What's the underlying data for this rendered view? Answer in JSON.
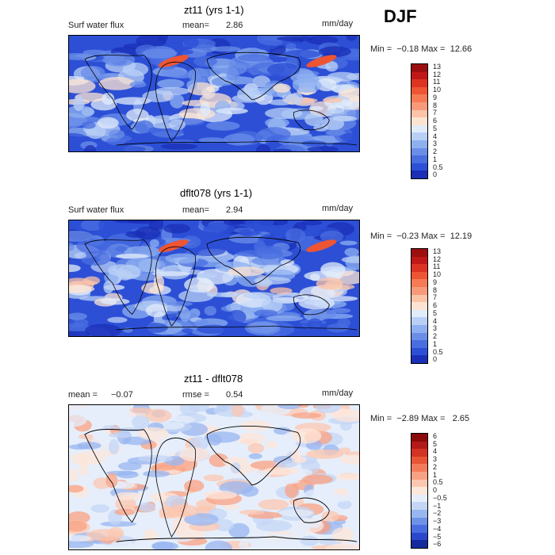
{
  "season": "DJF",
  "units": "mm/day",
  "panels": [
    {
      "title": "zt11 (yrs 1-1)",
      "field": "Surf water flux",
      "left_stat": "",
      "left_value": "",
      "mean_label": "mean=",
      "mean": "2.86",
      "minmax": "Min =  −0.18 Max =  12.66",
      "levels": [
        "13",
        "12",
        "11",
        "10",
        "9",
        "8",
        "7",
        "6",
        "5",
        "4",
        "3",
        "2",
        "1",
        "0.5",
        "0"
      ],
      "colors": [
        "#9b0f0f",
        "#c01818",
        "#dd3322",
        "#ee5533",
        "#f57a55",
        "#f89a7a",
        "#fbc3a8",
        "#fde4d2",
        "#e1ecfb",
        "#b9d0f6",
        "#8fb0f0",
        "#6a8ee8",
        "#4a6ee0",
        "#2c4fd6",
        "#1a2fb5"
      ]
    },
    {
      "title": "dflt078 (yrs 1-1)",
      "field": "Surf water flux",
      "left_stat": "",
      "left_value": "",
      "mean_label": "mean=",
      "mean": "2.94",
      "minmax": "Min =  −0.23 Max =  12.19",
      "levels": [
        "13",
        "12",
        "11",
        "10",
        "9",
        "8",
        "7",
        "6",
        "5",
        "4",
        "3",
        "2",
        "1",
        "0.5",
        "0"
      ],
      "colors": [
        "#9b0f0f",
        "#c01818",
        "#dd3322",
        "#ee5533",
        "#f57a55",
        "#f89a7a",
        "#fbc3a8",
        "#fde4d2",
        "#e1ecfb",
        "#b9d0f6",
        "#8fb0f0",
        "#6a8ee8",
        "#4a6ee0",
        "#2c4fd6",
        "#1a2fb5"
      ]
    },
    {
      "title": "zt11 - dflt078",
      "field": "",
      "left_stat": "mean =",
      "left_value": "−0.07",
      "mean_label": "rmse =",
      "mean": "0.54",
      "minmax": "Min =  −2.89 Max =   2.65",
      "levels": [
        "6",
        "5",
        "4",
        "3",
        "2",
        "1",
        "0.5",
        "0",
        "−0.5",
        "−1",
        "−2",
        "−3",
        "−4",
        "−5",
        "−6"
      ],
      "colors": [
        "#8b0a0a",
        "#b31a1a",
        "#d23324",
        "#e85535",
        "#f47b5a",
        "#f9a283",
        "#fcc7b0",
        "#fde6da",
        "#e6eefb",
        "#c4d6f6",
        "#98b6f0",
        "#6d92e8",
        "#4a6ee0",
        "#2b48cc",
        "#152a9c"
      ]
    }
  ]
}
